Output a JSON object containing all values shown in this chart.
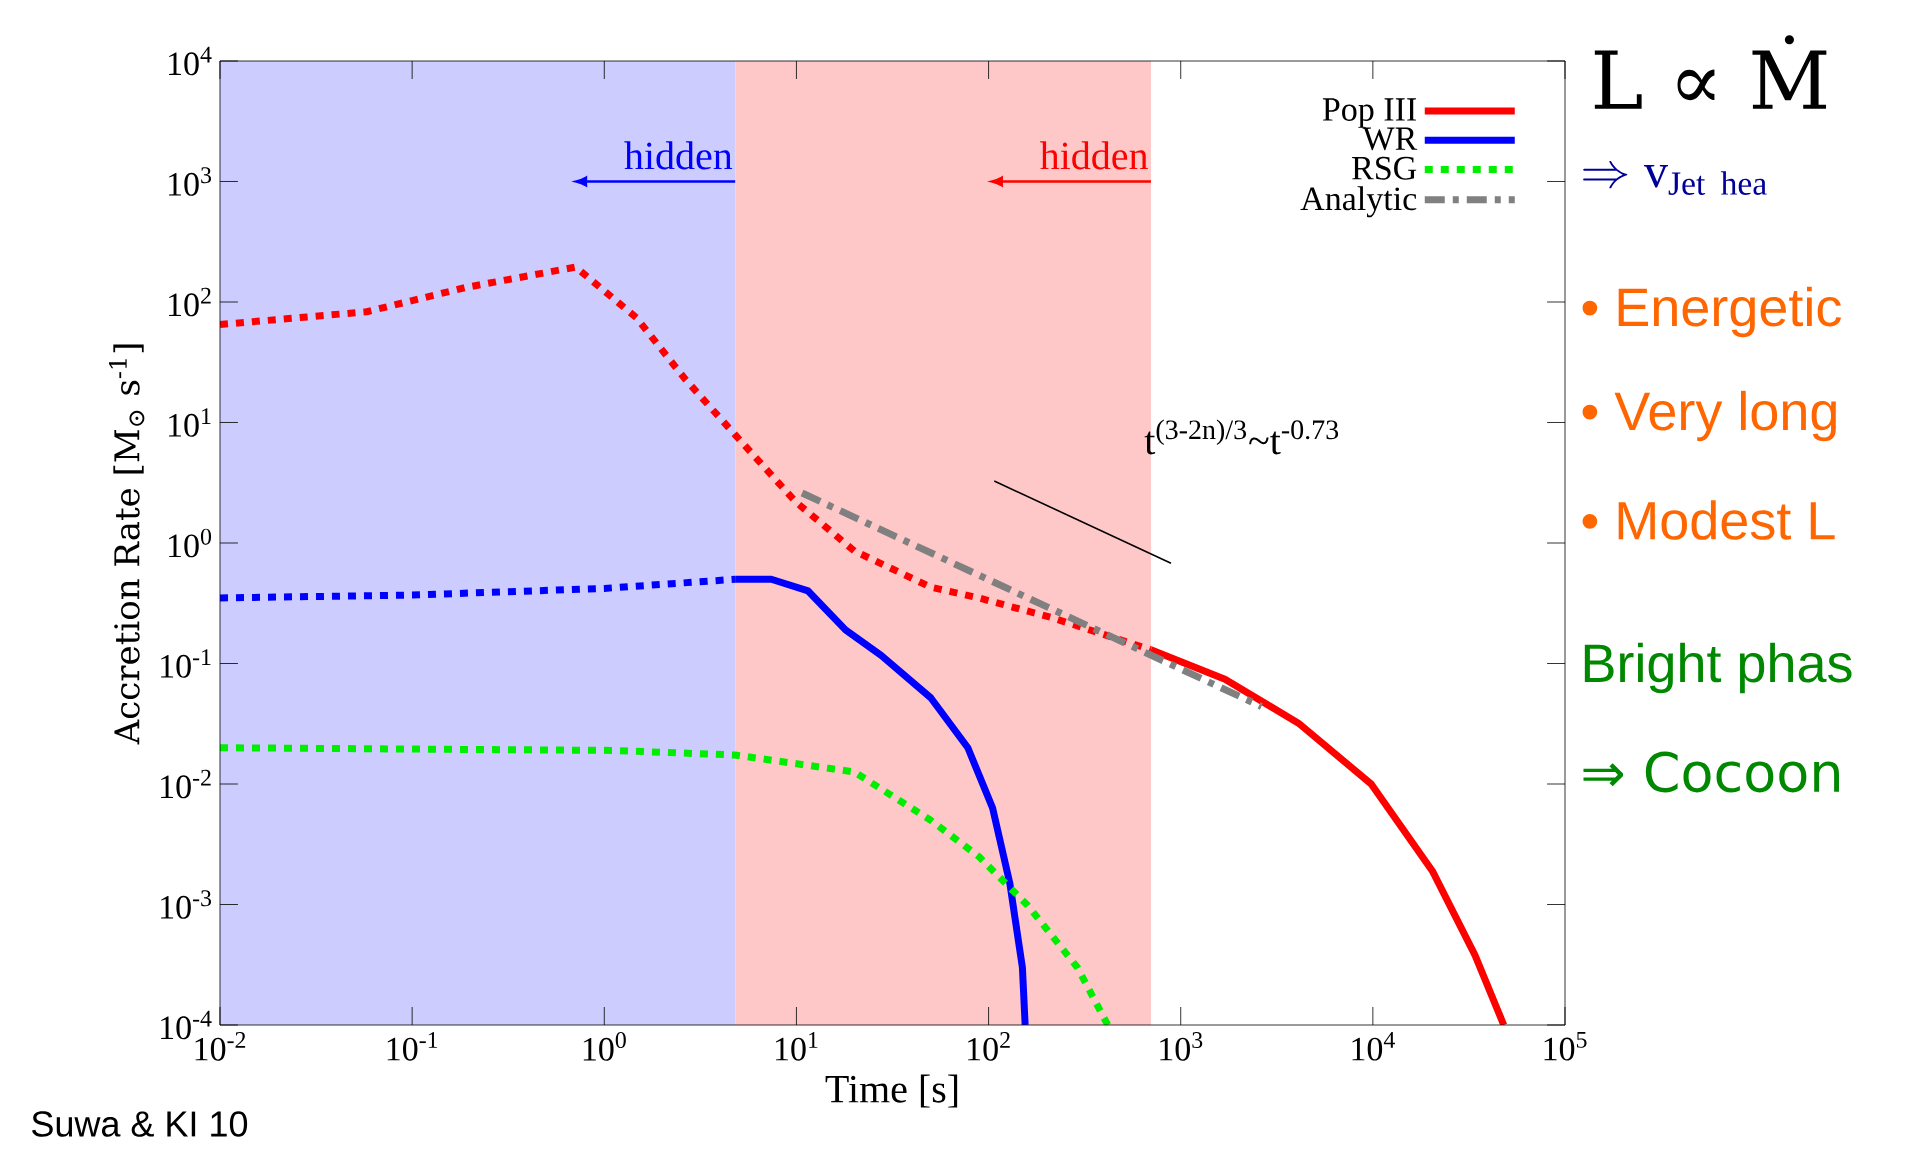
{
  "chart_data": {
    "type": "line",
    "xlabel": "Time [s]",
    "ylabel": "Accretion Rate [M$_{⊙}$ s$^{-1}$]",
    "log": "xy",
    "grid": false,
    "legend": "top right",
    "marker": "none",
    "xlim": [
      0.01,
      100000
    ],
    "ylim": [
      0.0001,
      10000
    ],
    "xticks": [
      {
        "value": 0.01,
        "label": "10$^{-2}$"
      },
      {
        "value": 0.1,
        "label": "10$^{-1}$"
      },
      {
        "value": 1,
        "label": "10$^{0}$"
      },
      {
        "value": 10,
        "label": "10$^{1}$"
      },
      {
        "value": 100,
        "label": "10$^{2}$"
      },
      {
        "value": 1000,
        "label": "10$^{3}$"
      },
      {
        "value": 10000,
        "label": "10$^{4}$"
      },
      {
        "value": 100000,
        "label": "10$^{5}$"
      }
    ],
    "yticks": [
      {
        "value": 0.0001,
        "label": "10$^{-4}$"
      },
      {
        "value": 0.001,
        "label": "10$^{-3}$"
      },
      {
        "value": 0.01,
        "label": "10$^{-2}$"
      },
      {
        "value": 0.1,
        "label": "10$^{-1}$"
      },
      {
        "value": 1,
        "label": "10$^{0}$"
      },
      {
        "value": 10,
        "label": "10$^{1}$"
      },
      {
        "value": 100,
        "label": "10$^{2}$"
      },
      {
        "value": 1000,
        "label": "10$^{3}$"
      },
      {
        "value": 10000,
        "label": "10$^{4}$"
      }
    ],
    "bands": [
      {
        "axis": "x",
        "from": 0.01,
        "to": 4.8,
        "color": "#ccccff"
      },
      {
        "axis": "x",
        "from": 4.8,
        "to": 700,
        "color": "#ffc8c8"
      }
    ],
    "series": [
      {
        "name": "Pop III",
        "color": "#ff0000",
        "line_style": "solid",
        "x": [
          700,
          1700,
          4100,
          9800,
          20400,
          34000,
          48000
        ],
        "values": [
          0.13,
          0.074,
          0.032,
          0.01,
          0.0019,
          0.00038,
          0.0001
        ]
      },
      {
        "name": "WR",
        "color": "#0000ff",
        "line_style": "solid",
        "x": [
          4.8,
          7.4,
          11.5,
          18,
          27.6,
          50,
          78,
          105,
          129,
          150,
          155
        ],
        "values": [
          0.5,
          0.5,
          0.4,
          0.19,
          0.117,
          0.052,
          0.02,
          0.0063,
          0.0015,
          0.0003,
          0.0001
        ]
      },
      {
        "name": "RSG",
        "color": "#00ee00",
        "line_style": "dotted",
        "x": [
          0.01,
          0.1,
          1.1,
          4.8,
          20,
          50,
          89,
          160,
          290,
          417
        ],
        "values": [
          0.02,
          0.0195,
          0.019,
          0.0174,
          0.0126,
          0.005,
          0.0025,
          0.00098,
          0.0003,
          0.0001
        ]
      },
      {
        "name": "Analytic",
        "color": "#808080",
        "line_style": "dashdot",
        "x": [
          10.7,
          2630
        ],
        "values": [
          2.6,
          0.044
        ]
      },
      {
        "color": "#ff0000",
        "line_style": "dotted",
        "x": [
          0.01,
          0.058,
          0.19,
          0.71,
          1.47,
          2.63,
          4.8,
          9.9,
          20,
          50,
          89,
          214,
          700
        ],
        "values": [
          65,
          83,
          132,
          195,
          74,
          23,
          7.9,
          2.2,
          0.86,
          0.43,
          0.35,
          0.24,
          0.13
        ]
      },
      {
        "color": "#0000ff",
        "line_style": "dotted",
        "x": [
          0.01,
          0.1,
          1,
          4.8
        ],
        "values": [
          0.35,
          0.37,
          0.42,
          0.5
        ]
      },
      {
        "color": "#000000",
        "line_style": "solid",
        "x": [
          107,
          890
        ],
        "values": [
          3.27,
          0.68
        ]
      }
    ],
    "annotations": [
      "hidden",
      "hidden",
      "t$^{(3-2n)/3}$~t$^{-0.73}$",
      "L ∝ Ṁ",
      "\\Rightarrow \\mathrm{v}_{\\mathrm{Jet\\ hea}}",
      "• Energetic",
      "• Very long",
      "• Modest L",
      "Bright phas",
      "⇒ Cocoon",
      "Suwa & KI 10"
    ]
  }
}
